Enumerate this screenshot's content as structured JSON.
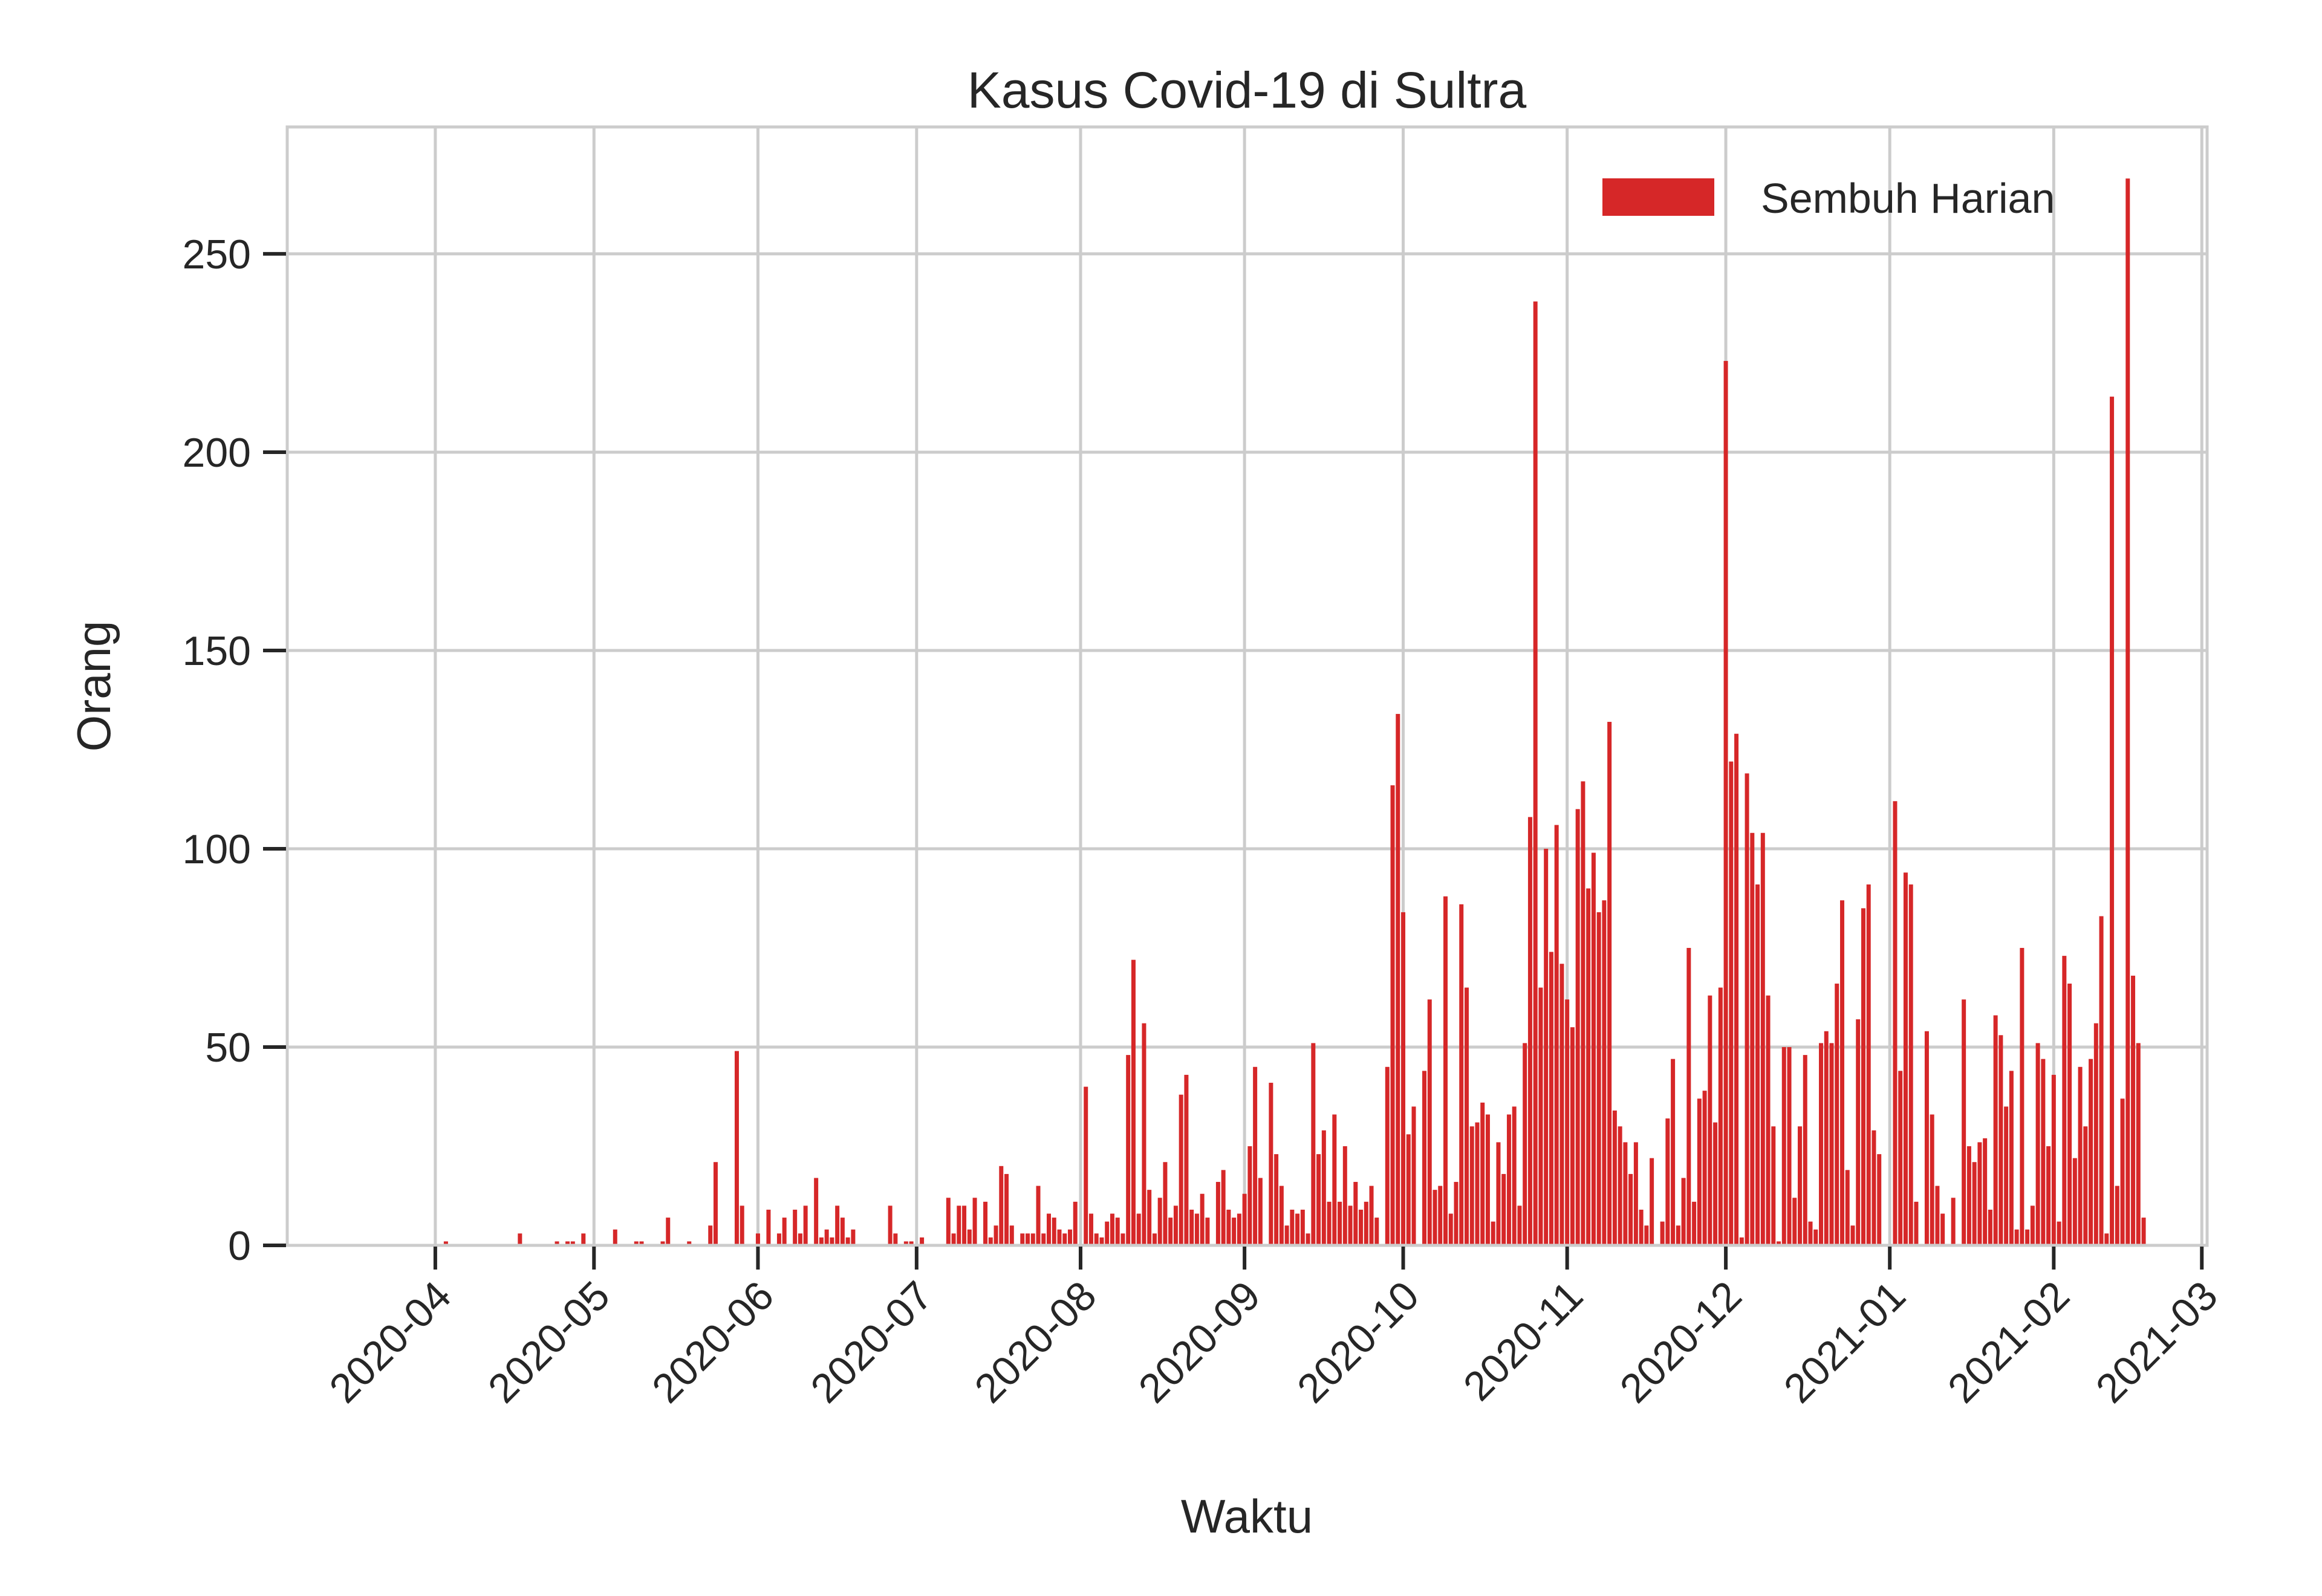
{
  "chart_data": {
    "type": "bar",
    "title": "Kasus Covid-19 di Sultra",
    "xlabel": "Waktu",
    "ylabel": "Orang",
    "legend": {
      "label": "Sembuh Harian",
      "placement": "top-right"
    },
    "bar_color": "#d62728",
    "grid": true,
    "x_range": [
      "2020-03-04",
      "2021-03-02"
    ],
    "ylim": [
      0,
      282
    ],
    "yticks": [
      0,
      50,
      100,
      150,
      200,
      250
    ],
    "xticks": [
      "2020-04",
      "2020-05",
      "2020-06",
      "2020-07",
      "2020-08",
      "2020-09",
      "2020-10",
      "2020-11",
      "2020-12",
      "2021-01",
      "2021-02",
      "2021-03"
    ],
    "start_date": "2020-04-03",
    "daily_values": [
      1,
      0,
      0,
      0,
      0,
      0,
      0,
      0,
      0,
      0,
      0,
      0,
      0,
      0,
      3,
      0,
      0,
      0,
      0,
      0,
      0,
      1,
      0,
      1,
      1,
      0,
      3,
      0,
      0,
      0,
      0,
      0,
      4,
      0,
      0,
      0,
      1,
      1,
      0,
      0,
      0,
      1,
      7,
      0,
      0,
      0,
      1,
      0,
      0,
      0,
      5,
      21,
      0,
      0,
      0,
      49,
      10,
      0,
      0,
      3,
      0,
      9,
      0,
      3,
      7,
      0,
      9,
      3,
      10,
      0,
      17,
      2,
      4,
      2,
      10,
      7,
      2,
      4,
      0,
      0,
      0,
      0,
      0,
      0,
      10,
      3,
      0,
      1,
      1,
      0,
      2,
      0,
      0,
      0,
      0,
      12,
      3,
      10,
      10,
      4,
      12,
      0,
      11,
      2,
      5,
      20,
      18,
      5,
      0,
      3,
      3,
      3,
      15,
      3,
      8,
      7,
      4,
      3,
      4,
      11,
      0,
      40,
      8,
      3,
      2,
      6,
      8,
      7,
      3,
      48,
      72,
      8,
      56,
      14,
      3,
      12,
      21,
      7,
      10,
      38,
      43,
      9,
      8,
      13,
      7,
      0,
      16,
      19,
      9,
      7,
      8,
      13,
      25,
      45,
      17,
      0,
      41,
      23,
      15,
      5,
      9,
      8,
      9,
      3,
      51,
      23,
      29,
      11,
      33,
      11,
      25,
      10,
      16,
      9,
      11,
      15,
      7,
      0,
      45,
      116,
      134,
      84,
      28,
      35,
      0,
      44,
      62,
      14,
      15,
      88,
      8,
      16,
      86,
      65,
      30,
      31,
      36,
      33,
      6,
      26,
      18,
      33,
      35,
      10,
      51,
      108,
      238,
      65,
      100,
      74,
      106,
      71,
      62,
      55,
      110,
      117,
      90,
      99,
      84,
      87,
      132,
      34,
      30,
      26,
      18,
      26,
      9,
      5,
      22,
      0,
      6,
      32,
      47,
      5,
      17,
      75,
      11,
      37,
      39,
      63,
      31,
      65,
      223,
      122,
      129,
      2,
      119,
      104,
      91,
      104,
      63,
      30,
      1,
      50,
      50,
      12,
      30,
      48,
      6,
      4,
      51,
      54,
      51,
      66,
      87,
      19,
      5,
      57,
      85,
      91,
      29,
      23,
      0,
      0,
      112,
      44,
      94,
      91,
      11,
      0,
      54,
      33,
      15,
      8,
      0,
      12,
      0,
      62,
      25,
      21,
      26,
      27,
      9,
      58,
      53,
      35,
      44,
      4,
      75,
      4,
      10,
      51,
      47,
      25,
      43,
      6,
      73,
      66,
      22,
      45,
      30,
      47,
      56,
      83,
      3,
      214,
      15,
      37,
      269,
      68,
      51,
      7
    ]
  }
}
